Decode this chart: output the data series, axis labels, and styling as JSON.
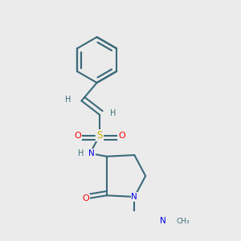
{
  "bg_color": "#ebebeb",
  "bond_color": "#3a6a7a",
  "atom_colors": {
    "S": "#c8b400",
    "O": "#ff0000",
    "N": "#0000ee",
    "H": "#3a6a7a",
    "C": "#3a6a7a"
  }
}
